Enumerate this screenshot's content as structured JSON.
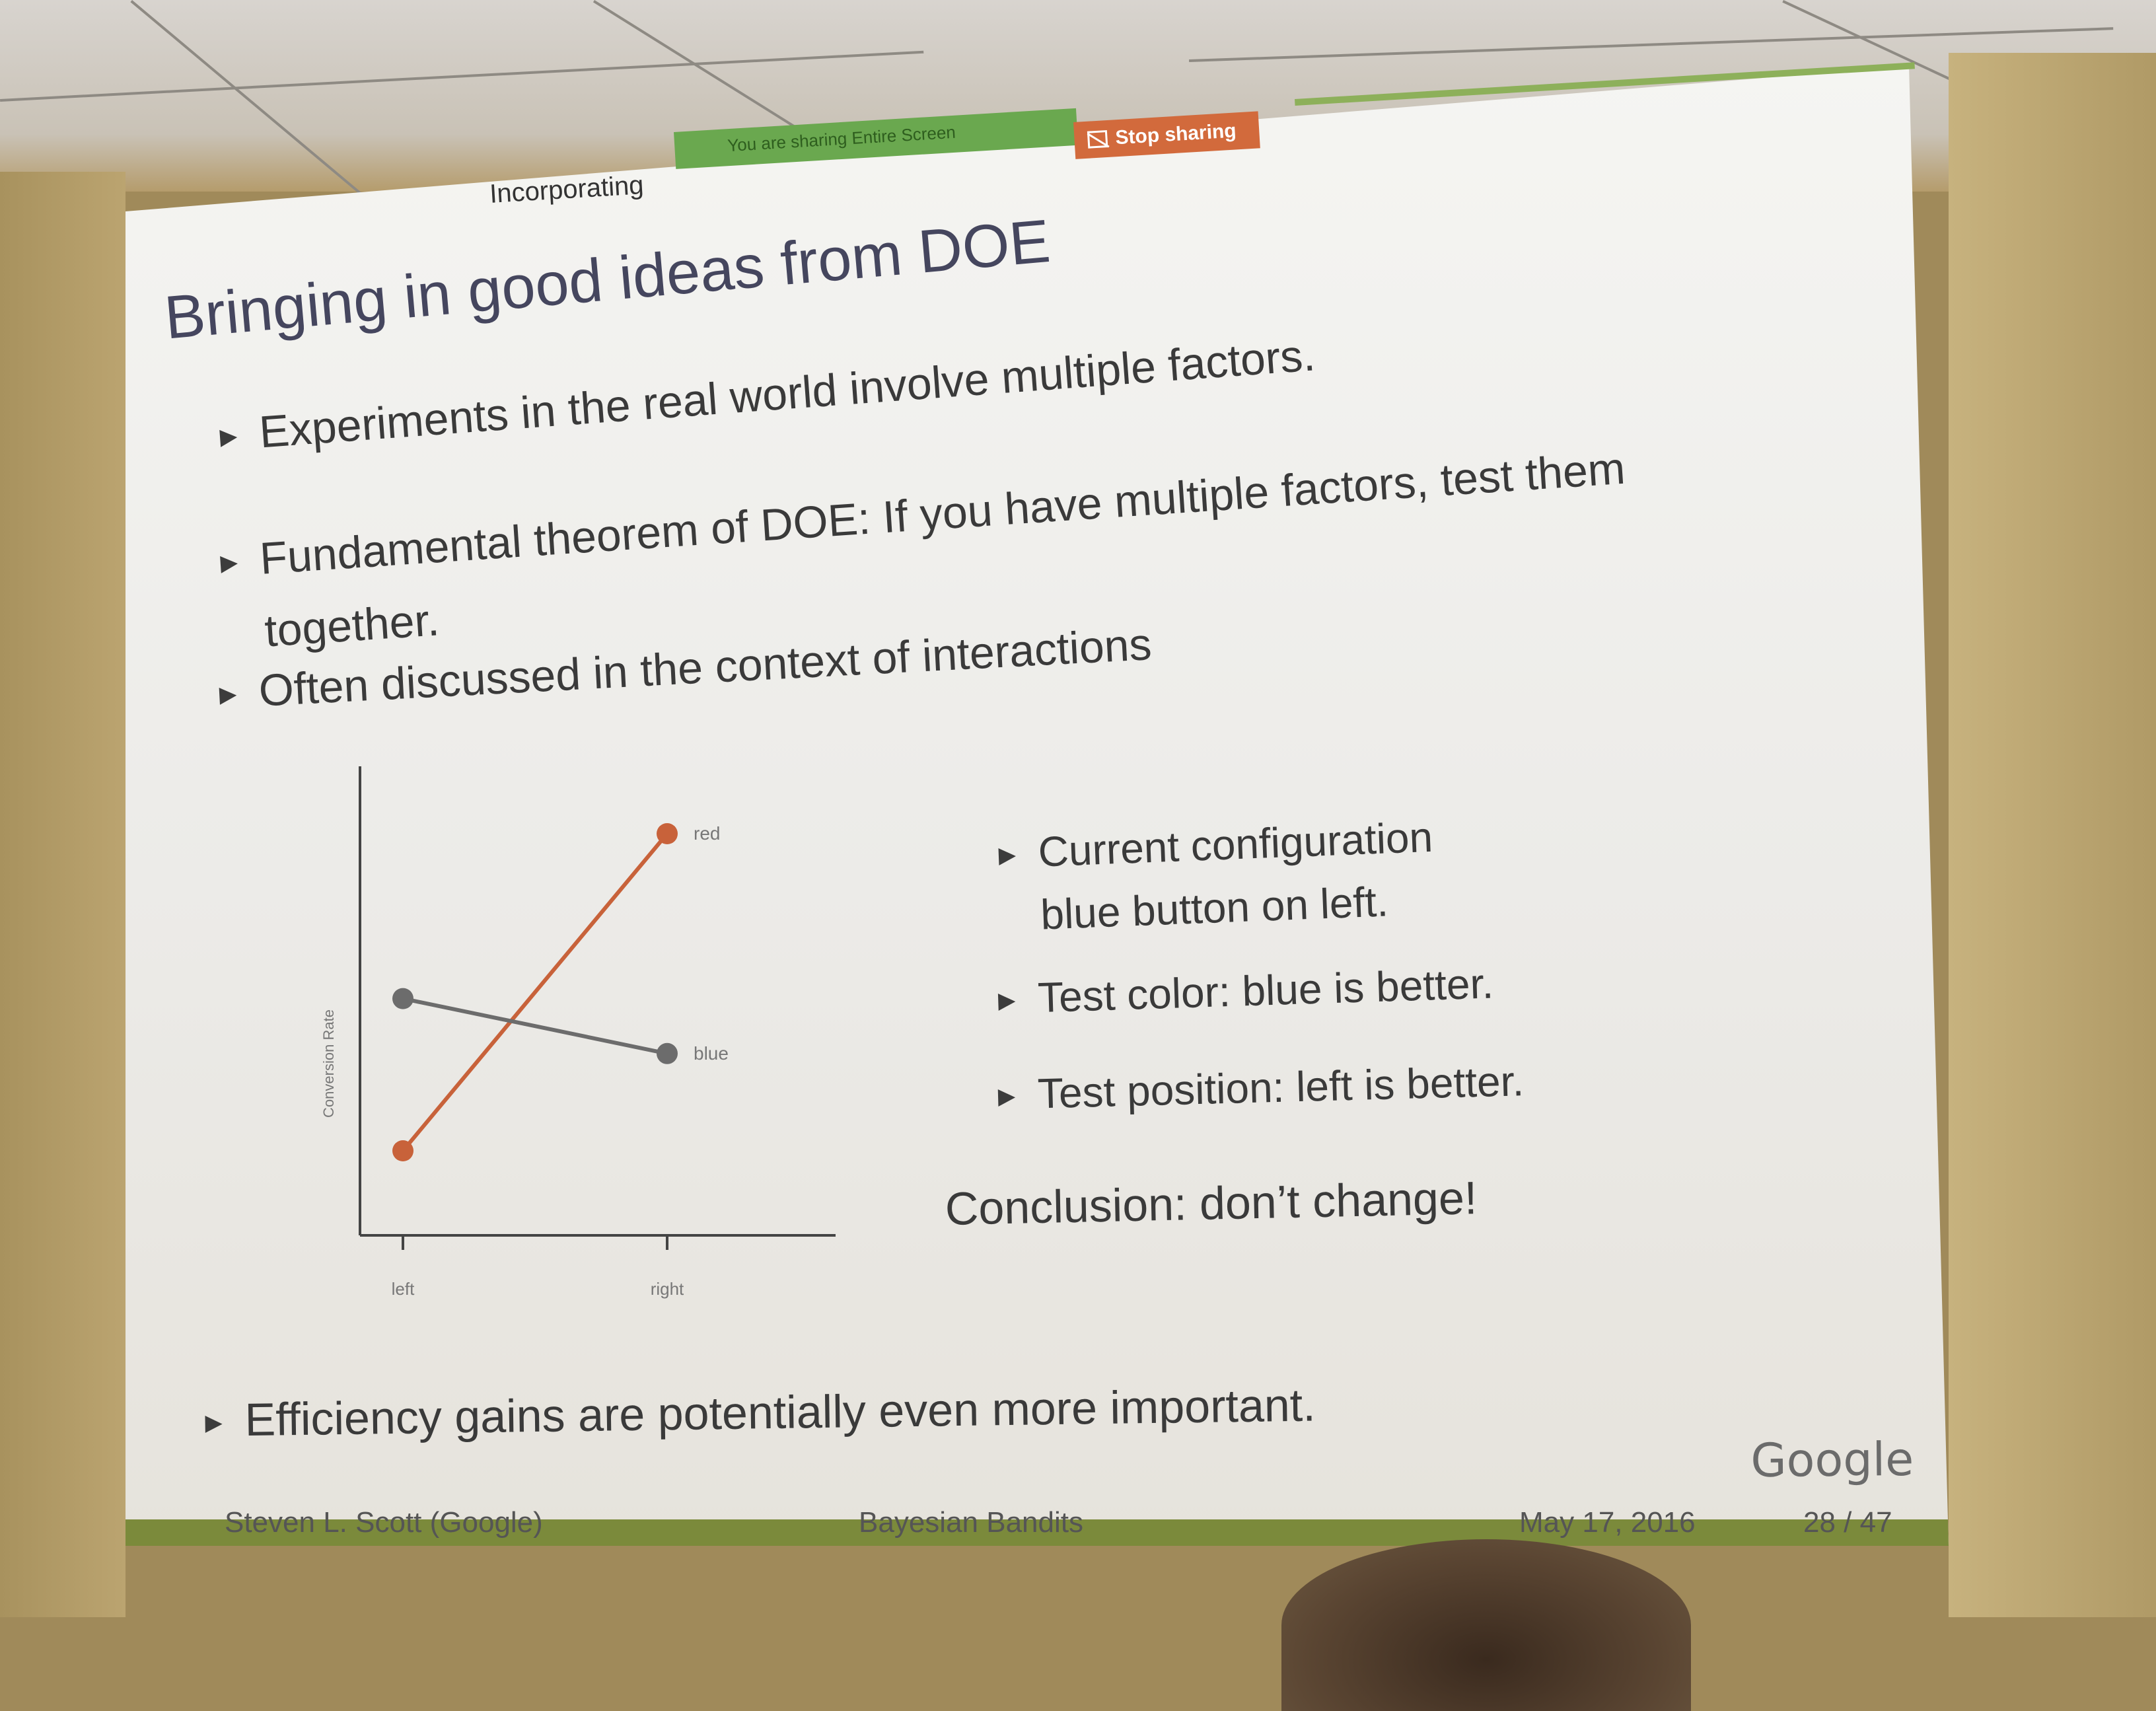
{
  "share_bar": {
    "sharing_text": "You are sharing Entire Screen",
    "stop_label": "Stop sharing"
  },
  "slide": {
    "section_head": "Incorporating",
    "title": "Bringing in good ideas from DOE",
    "bullets": [
      "Experiments in the real world involve multiple factors.",
      "Fundamental theorem of DOE: If you have multiple factors, test them",
      "together.",
      "Often discussed in the context of interactions"
    ],
    "right_bullets": [
      "Current configuration",
      "blue button on left.",
      "Test color: blue is better.",
      "Test position: left is better."
    ],
    "conclusion": "Conclusion: don’t change!",
    "last_bullet": "Efficiency gains are potentially even more important.",
    "logo": "Google",
    "footer": {
      "author": "Steven L. Scott  (Google)",
      "talk": "Bayesian Bandits",
      "date": "May 17, 2016",
      "page": "28 / 47"
    }
  },
  "chart_data": {
    "type": "line",
    "categories": [
      "left",
      "right"
    ],
    "series": [
      {
        "name": "red",
        "values": [
          0.2,
          0.95
        ],
        "color": "#c8623a"
      },
      {
        "name": "blue",
        "values": [
          0.56,
          0.43
        ],
        "color": "#6c6c6c"
      }
    ],
    "title": "",
    "xlabel": "",
    "ylabel": "Conversion Rate",
    "ylim": [
      0,
      1
    ]
  }
}
